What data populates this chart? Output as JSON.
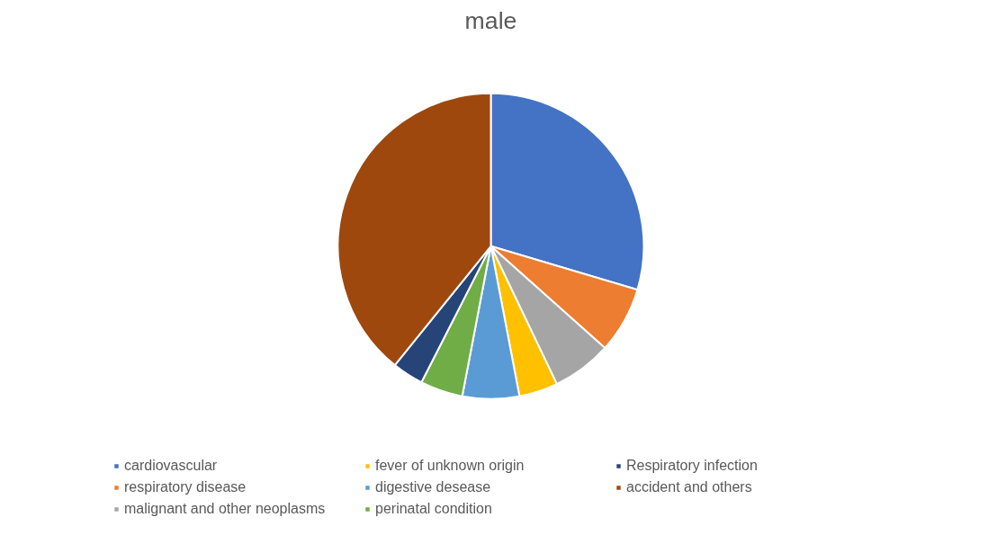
{
  "chart_data": {
    "type": "pie",
    "title": "male",
    "categories": [
      "cardiovascular",
      "respiratory disease",
      "malignant and other neoplasms",
      "fever of unknown origin",
      "digestive desease",
      "perinatal condition",
      "Respiratory infection",
      "accident and others"
    ],
    "values": [
      29.6,
      7.0,
      6.3,
      4.1,
      6.0,
      4.5,
      3.3,
      39.2
    ],
    "colors": [
      "#4472c4",
      "#ed7d31",
      "#a5a5a5",
      "#ffc000",
      "#5b9bd5",
      "#70ad47",
      "#264478",
      "#9e480e"
    ],
    "legend": "bottom"
  }
}
